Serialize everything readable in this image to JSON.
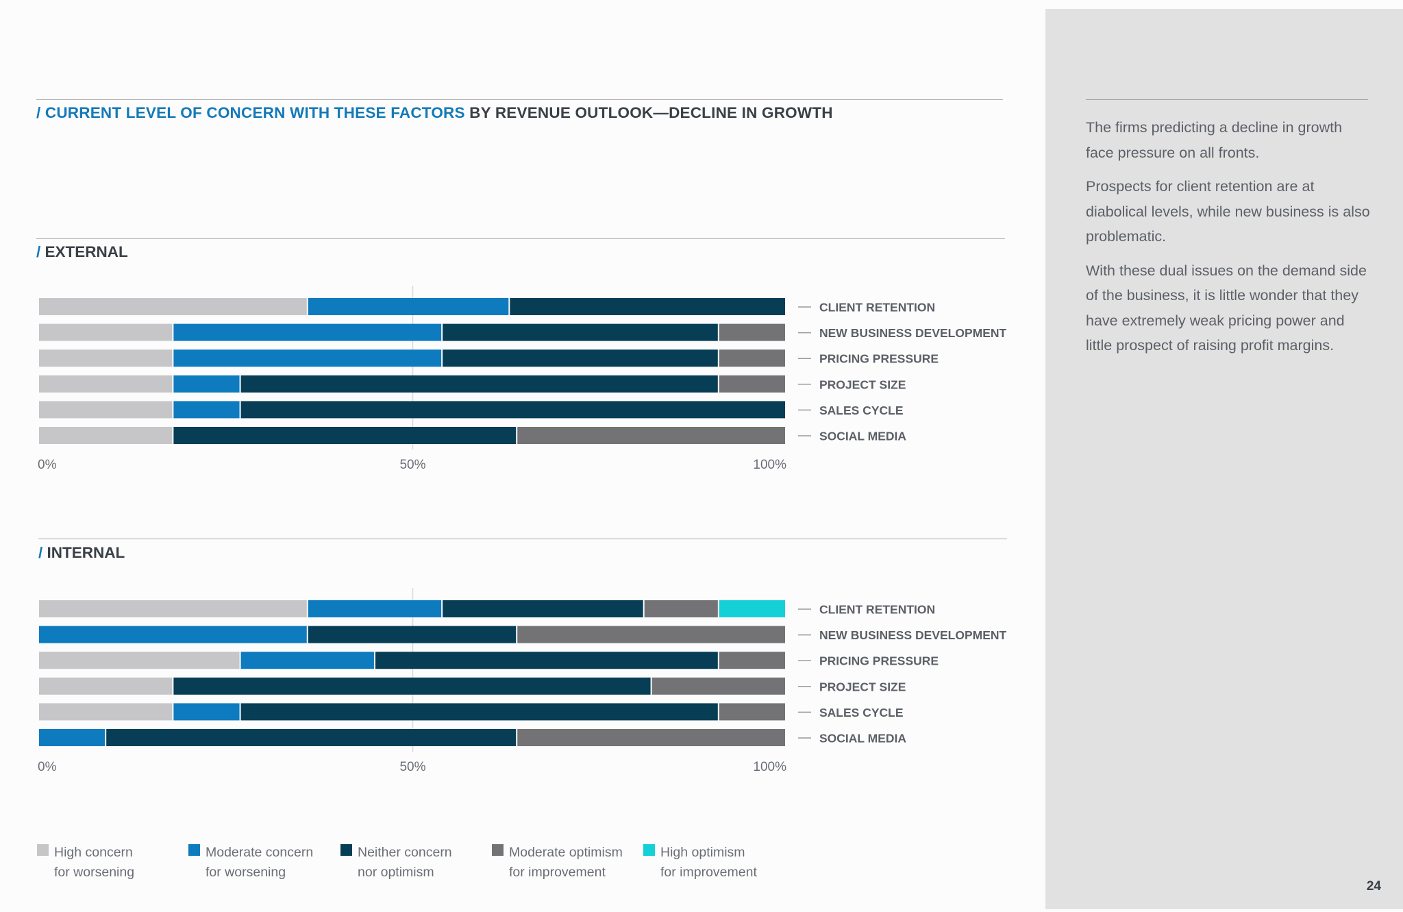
{
  "title": {
    "accent": "/ CURRENT LEVEL OF CONCERN WITH THESE FACTORS",
    "rest": " BY REVENUE OUTLOOK—DECLINE IN GROWTH"
  },
  "sections": {
    "external": {
      "slash": "/ ",
      "label": "EXTERNAL"
    },
    "internal": {
      "slash": "/ ",
      "label": "INTERNAL"
    }
  },
  "colors": {
    "high_concern": "#c6c6c8",
    "moderate_concern": "#0f7bbf",
    "neither": "#073e55",
    "moderate_optimism": "#737375",
    "high_optimism": "#16d0d8",
    "axis_text": "#6a6e74",
    "label_text": "#5c6066"
  },
  "chart_data": [
    {
      "type": "bar",
      "stacked": true,
      "orientation": "horizontal",
      "title": "EXTERNAL",
      "categories": [
        "CLIENT RETENTION",
        "NEW BUSINESS DEVELOPMENT",
        "PRICING PRESSURE",
        "PROJECT SIZE",
        "SALES CYCLE",
        "SOCIAL MEDIA"
      ],
      "series": [
        {
          "name": "High concern for worsening",
          "values": [
            36,
            18,
            18,
            18,
            18,
            18
          ]
        },
        {
          "name": "Moderate concern for worsening",
          "values": [
            27,
            36,
            36,
            9,
            9,
            0
          ]
        },
        {
          "name": "Neither concern nor optimism",
          "values": [
            37,
            37,
            37,
            64,
            73,
            46
          ]
        },
        {
          "name": "Moderate optimism for improvement",
          "values": [
            0,
            9,
            9,
            9,
            0,
            36
          ]
        },
        {
          "name": "High optimism for improvement",
          "values": [
            0,
            0,
            0,
            0,
            0,
            0
          ]
        }
      ],
      "ticks": [
        "0%",
        "50%",
        "100%"
      ],
      "xlim": [
        0,
        100
      ],
      "unit": "%"
    },
    {
      "type": "bar",
      "stacked": true,
      "orientation": "horizontal",
      "title": "INTERNAL",
      "categories": [
        "CLIENT RETENTION",
        "NEW BUSINESS DEVELOPMENT",
        "PRICING PRESSURE",
        "PROJECT SIZE",
        "SALES CYCLE",
        "SOCIAL MEDIA"
      ],
      "series": [
        {
          "name": "High concern for worsening",
          "values": [
            36,
            0,
            27,
            18,
            18,
            0
          ]
        },
        {
          "name": "Moderate concern for worsening",
          "values": [
            18,
            36,
            18,
            0,
            9,
            9
          ]
        },
        {
          "name": "Neither concern nor optimism",
          "values": [
            27,
            28,
            46,
            64,
            64,
            55
          ]
        },
        {
          "name": "Moderate optimism for improvement",
          "values": [
            10,
            36,
            9,
            18,
            9,
            36
          ]
        },
        {
          "name": "High optimism for improvement",
          "values": [
            9,
            0,
            0,
            0,
            0,
            0
          ]
        }
      ],
      "ticks": [
        "0%",
        "50%",
        "100%"
      ],
      "xlim": [
        0,
        100
      ],
      "unit": "%"
    }
  ],
  "legend": [
    {
      "key": "high_concern",
      "line1": "High concern",
      "line2": "for worsening"
    },
    {
      "key": "moderate_concern",
      "line1": "Moderate concern",
      "line2": "for worsening"
    },
    {
      "key": "neither",
      "line1": "Neither concern",
      "line2": "nor optimism"
    },
    {
      "key": "moderate_optimism",
      "line1": "Moderate optimism",
      "line2": "for improvement"
    },
    {
      "key": "high_optimism",
      "line1": "High optimism",
      "line2": "for improvement"
    }
  ],
  "sidebar": {
    "paragraphs": [
      "The firms predicting a decline in growth face pressure on all fronts.",
      "Prospects for client retention are at diabolical levels, while new business is also problematic.",
      "With these dual issues on the demand side of the business, it is little wonder that they have extremely weak pricing power and little prospect of raising profit margins."
    ]
  },
  "page_number": "24"
}
